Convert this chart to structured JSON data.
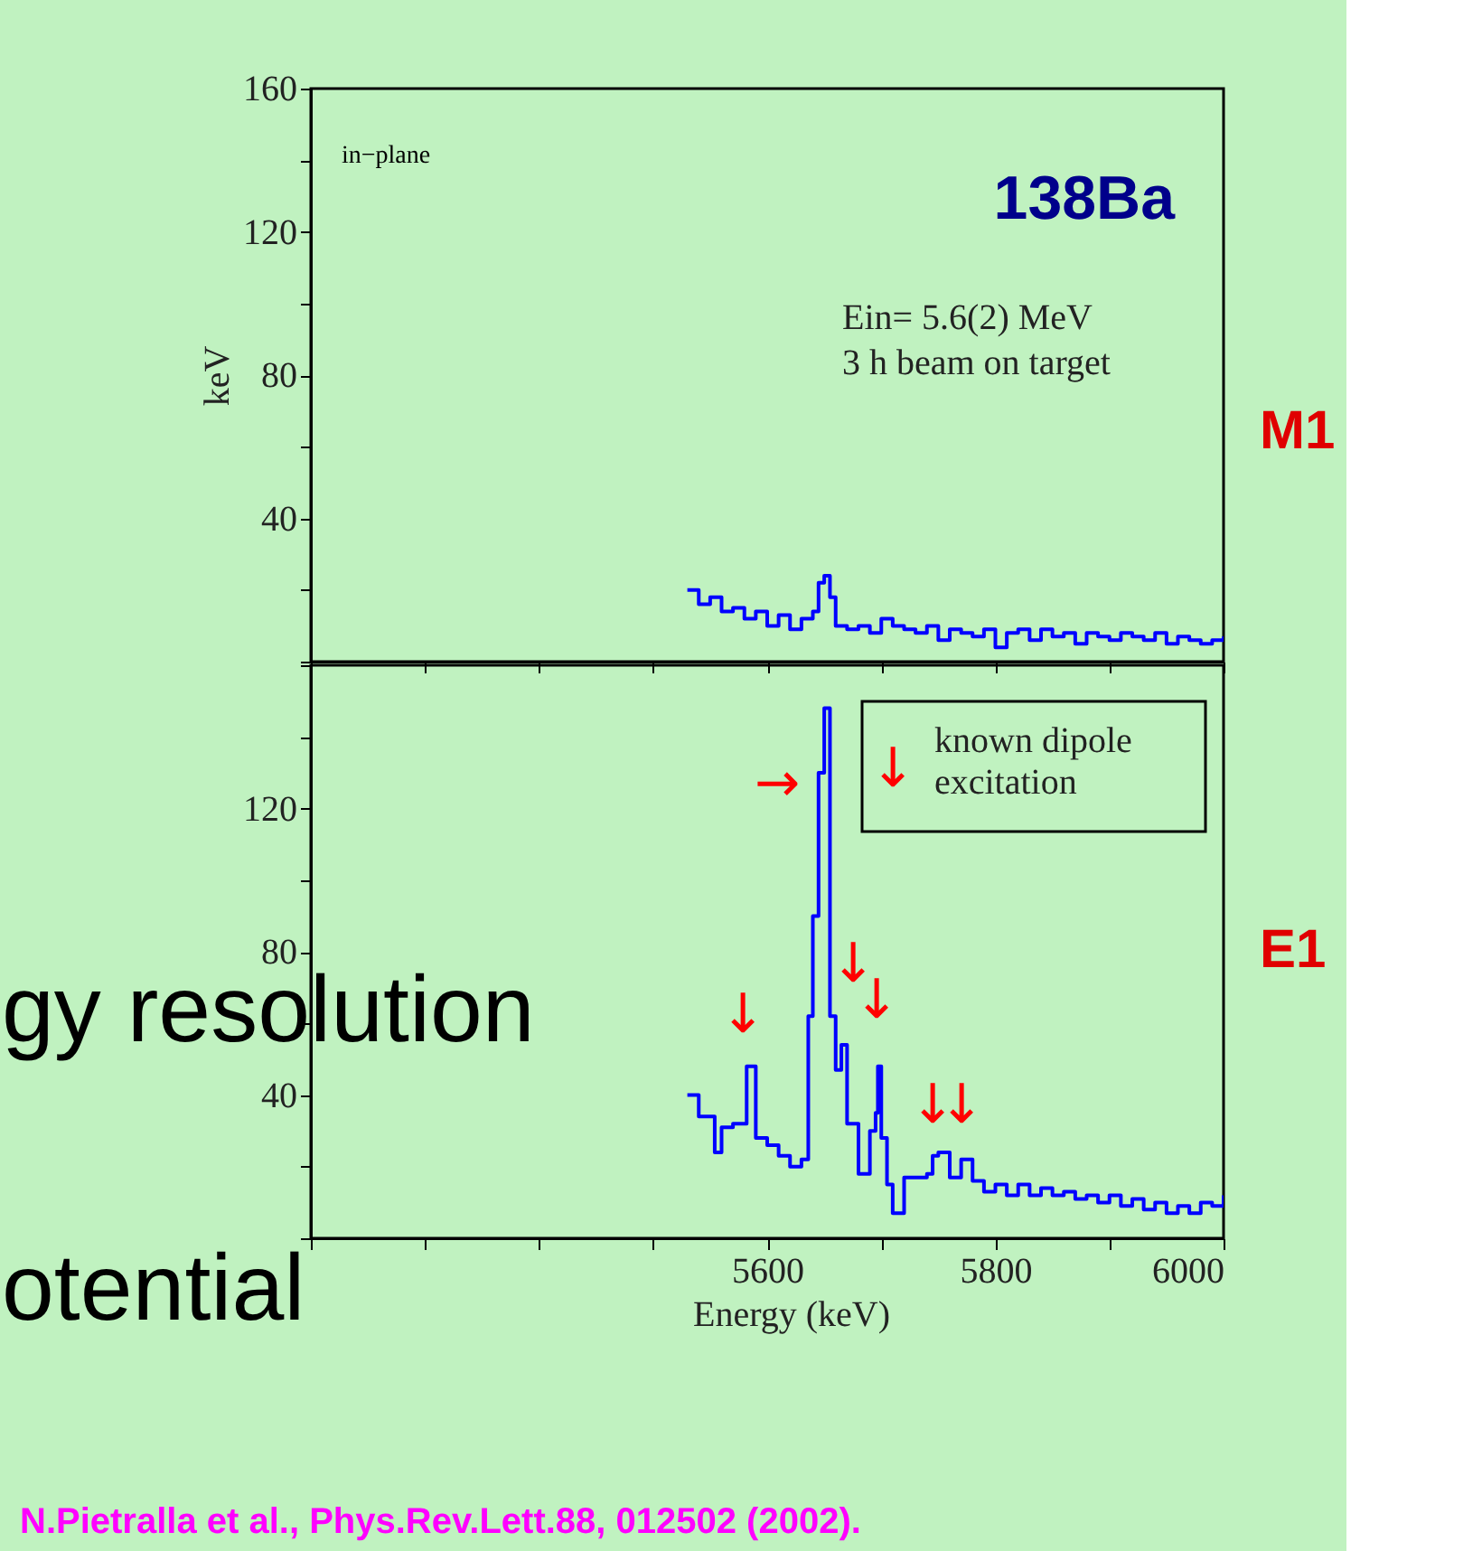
{
  "chart_data": [
    {
      "type": "step",
      "ylabel": "keV",
      "tick_labels": "y",
      "x": [
        5530,
        5540,
        5550,
        5560,
        5570,
        5580,
        5590,
        5600,
        5610,
        5620,
        5630,
        5640,
        5645,
        5650,
        5655,
        5660,
        5670,
        5680,
        5690,
        5700,
        5710,
        5720,
        5730,
        5740,
        5750,
        5760,
        5770,
        5780,
        5790,
        5800,
        5810,
        5820,
        5830,
        5840,
        5850,
        5860,
        5870,
        5880,
        5890,
        5900,
        5910,
        5920,
        5930,
        5940,
        5950,
        5960,
        5970,
        5980,
        5990,
        6000
      ],
      "series": [
        {
          "color": "#0000ff",
          "values": [
            20,
            16,
            18,
            14,
            15,
            12,
            14,
            10,
            13,
            9,
            12,
            14,
            22,
            24,
            18,
            10,
            9,
            10,
            8,
            12,
            10,
            9,
            8,
            10,
            6,
            9,
            8,
            7,
            9,
            4,
            8,
            9,
            6,
            9,
            7,
            8,
            5,
            8,
            7,
            6,
            8,
            7,
            6,
            8,
            5,
            7,
            6,
            5,
            6,
            7
          ]
        }
      ],
      "xlim": [
        5200,
        6000
      ],
      "xticks": [
        5200,
        5300,
        5400,
        5500,
        5600,
        5700,
        5800,
        5900,
        6000
      ],
      "ylim": [
        0,
        160
      ],
      "yticks": [
        {
          "value": 0,
          "label": null
        },
        {
          "value": 20,
          "label": null
        },
        40,
        {
          "value": 60,
          "label": null
        },
        80,
        {
          "value": 100,
          "label": null
        },
        120,
        {
          "value": 140,
          "label": null
        },
        160
      ],
      "annotations": [
        "in−plane",
        "138Ba",
        "Ein= 5.6(2) MeV",
        "3 h beam on target",
        "M1"
      ]
    },
    {
      "type": "step",
      "xlabel": "Energy (keV)",
      "x": [
        5530,
        5540,
        5554,
        5560,
        5570,
        5582,
        5590,
        5600,
        5610,
        5620,
        5630,
        5636,
        5640,
        5645,
        5650,
        5655,
        5660,
        5665,
        5670,
        5680,
        5690,
        5695,
        5697,
        5700,
        5705,
        5710,
        5720,
        5730,
        5740,
        5745,
        5750,
        5760,
        5770,
        5780,
        5790,
        5800,
        5810,
        5820,
        5830,
        5840,
        5850,
        5860,
        5870,
        5880,
        5890,
        5900,
        5910,
        5920,
        5930,
        5940,
        5950,
        5960,
        5970,
        5980,
        5990,
        6000
      ],
      "series": [
        {
          "color": "#0000ff",
          "values": [
            40,
            34,
            24,
            31,
            32,
            48,
            28,
            26,
            23,
            20,
            22,
            62,
            90,
            130,
            148,
            62,
            47,
            54,
            32,
            18,
            30,
            35,
            48,
            28,
            15,
            7,
            17,
            17,
            18,
            23,
            24,
            17,
            22,
            16,
            13,
            15,
            12,
            15,
            12,
            14,
            12,
            13,
            11,
            12,
            10,
            12,
            9,
            11,
            8,
            10,
            7,
            9,
            7,
            10,
            9,
            12
          ]
        }
      ],
      "xlim": [
        5200,
        6000
      ],
      "xticks": [
        {
          "value": 5200,
          "label": null
        },
        {
          "value": 5300,
          "label": null
        },
        {
          "value": 5400,
          "label": null
        },
        {
          "value": 5500,
          "label": null
        },
        5600,
        {
          "value": 5700,
          "label": null
        },
        5800,
        {
          "value": 5900,
          "label": null
        },
        6000
      ],
      "ylim": [
        0,
        160
      ],
      "yticks": [
        {
          "value": 0,
          "label": null
        },
        {
          "value": 20,
          "label": null
        },
        40,
        {
          "value": 60,
          "label": null
        },
        80,
        {
          "value": 100,
          "label": null
        },
        120,
        {
          "value": 140,
          "label": null
        },
        {
          "value": 160,
          "label": null
        }
      ],
      "annotations": [
        "↓",
        "↓",
        "↓",
        "↓",
        "↓",
        "→",
        "↓",
        "known dipole\nexcitation",
        "E1",
        "N.Pietralla et al., Phys.Rev.Lett.88, 012502 (2002).",
        "gy resolution",
        "otential"
      ]
    }
  ]
}
